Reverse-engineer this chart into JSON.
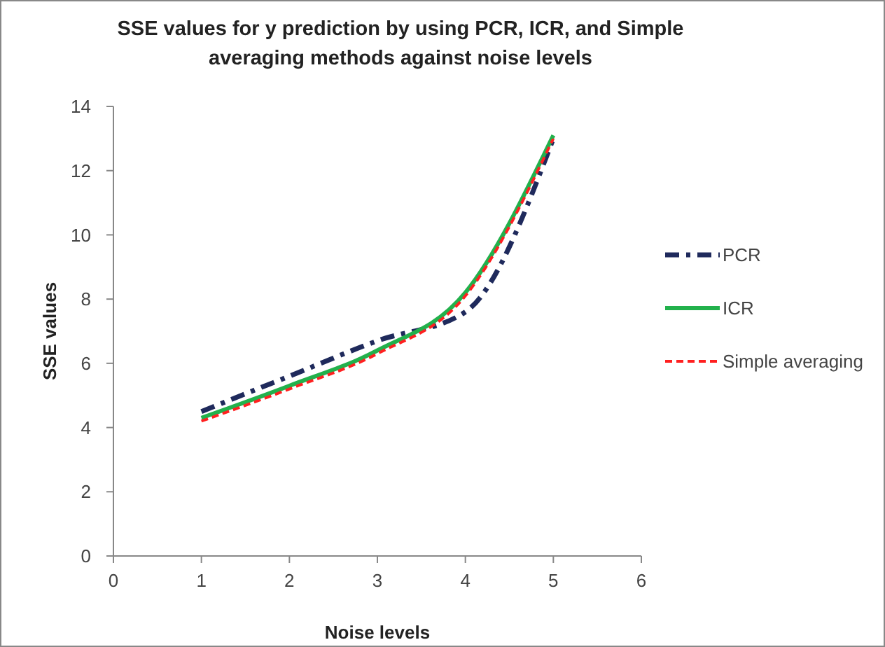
{
  "chart_data": {
    "type": "line",
    "title": "SSE values for y prediction by using PCR, ICR, and Simple averaging methods against noise levels",
    "xlabel": "Noise levels",
    "ylabel": "SSE values",
    "x": [
      1,
      2,
      3,
      4,
      5
    ],
    "xlim": [
      0,
      6
    ],
    "xticks": [
      0,
      1,
      2,
      3,
      4,
      5,
      6
    ],
    "ylim": [
      0,
      14
    ],
    "yticks": [
      0,
      2,
      4,
      6,
      8,
      10,
      12,
      14
    ],
    "legend": "right",
    "grid": false,
    "marker": "none",
    "series": [
      {
        "name": "PCR",
        "color": "#1f2a5c",
        "values": [
          4.5,
          5.6,
          6.7,
          7.6,
          13.0
        ],
        "line_style": "dashdot"
      },
      {
        "name": "ICR",
        "color": "#22b14c",
        "values": [
          4.3,
          5.3,
          6.4,
          8.2,
          13.1
        ],
        "line_style": "solid"
      },
      {
        "name": "Simple averaging",
        "color": "#ff2020",
        "values": [
          4.2,
          5.2,
          6.3,
          8.1,
          13.0
        ],
        "line_style": "dashed"
      }
    ]
  }
}
